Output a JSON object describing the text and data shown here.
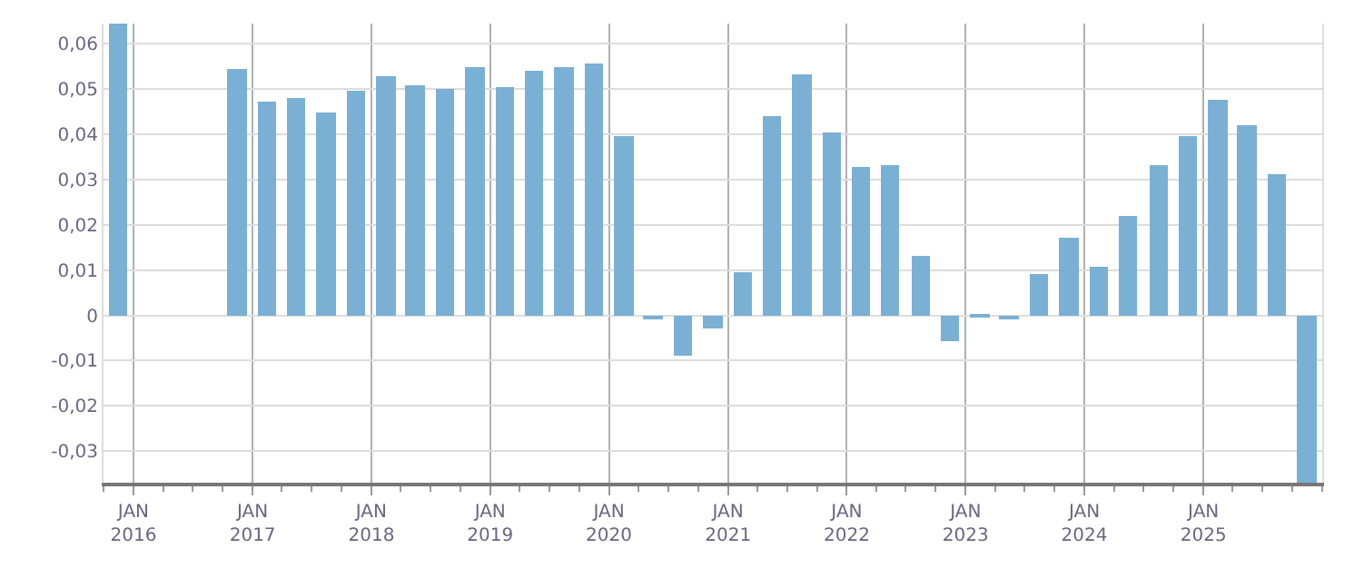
{
  "chart_data": {
    "type": "bar",
    "x": [
      "2015-11-15",
      "2016-11-15",
      "2017-02-15",
      "2017-05-15",
      "2017-08-15",
      "2017-11-15",
      "2018-02-15",
      "2018-05-15",
      "2018-08-15",
      "2018-11-15",
      "2019-02-15",
      "2019-05-15",
      "2019-08-15",
      "2019-11-15",
      "2020-02-15",
      "2020-05-15",
      "2020-08-15",
      "2020-11-15",
      "2021-02-15",
      "2021-05-15",
      "2021-08-15",
      "2021-11-15",
      "2022-02-15",
      "2022-05-15",
      "2022-08-15",
      "2022-11-15",
      "2023-02-15",
      "2023-05-15",
      "2023-08-15",
      "2023-11-15",
      "2024-02-15",
      "2024-05-15",
      "2024-08-15",
      "2024-11-15",
      "2025-02-15",
      "2025-05-15",
      "2025-08-15",
      "2025-11-15"
    ],
    "series": [
      {
        "color": "#7ab0d3",
        "values": [
          0.0645,
          0.0544,
          0.0472,
          0.048,
          0.0449,
          0.0495,
          0.0529,
          0.051,
          0.0499,
          0.0548,
          0.0503,
          0.0541,
          0.0548,
          0.0556,
          0.0396,
          -0.001,
          -0.009,
          -0.003,
          0.0095,
          0.0442,
          0.0533,
          0.0404,
          0.0327,
          0.0331,
          0.0133,
          -0.0056,
          -0.0002,
          -0.0008,
          0.0091,
          0.0171,
          0.0107,
          0.0221,
          0.0331,
          0.0396,
          0.0476,
          0.0419,
          0.0312,
          -0.037
        ]
      }
    ],
    "xlim": [
      "2015-10-01",
      "2026-01-01"
    ],
    "xticks": [
      {
        "value": "2016-01-01",
        "label": "JAN\n2016"
      },
      {
        "value": "2017-01-01",
        "label": "JAN\n2017"
      },
      {
        "value": "2018-01-01",
        "label": "JAN\n2018"
      },
      {
        "value": "2019-01-01",
        "label": "JAN\n2019"
      },
      {
        "value": "2020-01-01",
        "label": "JAN\n2020"
      },
      {
        "value": "2021-01-01",
        "label": "JAN\n2021"
      },
      {
        "value": "2022-01-01",
        "label": "JAN\n2022"
      },
      {
        "value": "2023-01-01",
        "label": "JAN\n2023"
      },
      {
        "value": "2024-01-01",
        "label": "JAN\n2024"
      },
      {
        "value": "2025-01-01",
        "label": "JAN\n2025"
      }
    ],
    "ylim": [
      -0.037,
      0.0645
    ],
    "yticks": [
      {
        "value": -0.03,
        "label": "-0,03"
      },
      {
        "value": -0.02,
        "label": "-0,02"
      },
      {
        "value": -0.01,
        "label": "-0,01"
      },
      {
        "value": 0,
        "label": "0"
      },
      {
        "value": 0.01,
        "label": "0,01"
      },
      {
        "value": 0.02,
        "label": "0,02"
      },
      {
        "value": 0.03,
        "label": "0,03"
      },
      {
        "value": 0.04,
        "label": "0,04"
      },
      {
        "value": 0.05,
        "label": "0,05"
      },
      {
        "value": 0.06,
        "label": "0,06"
      }
    ],
    "grid": true
  }
}
